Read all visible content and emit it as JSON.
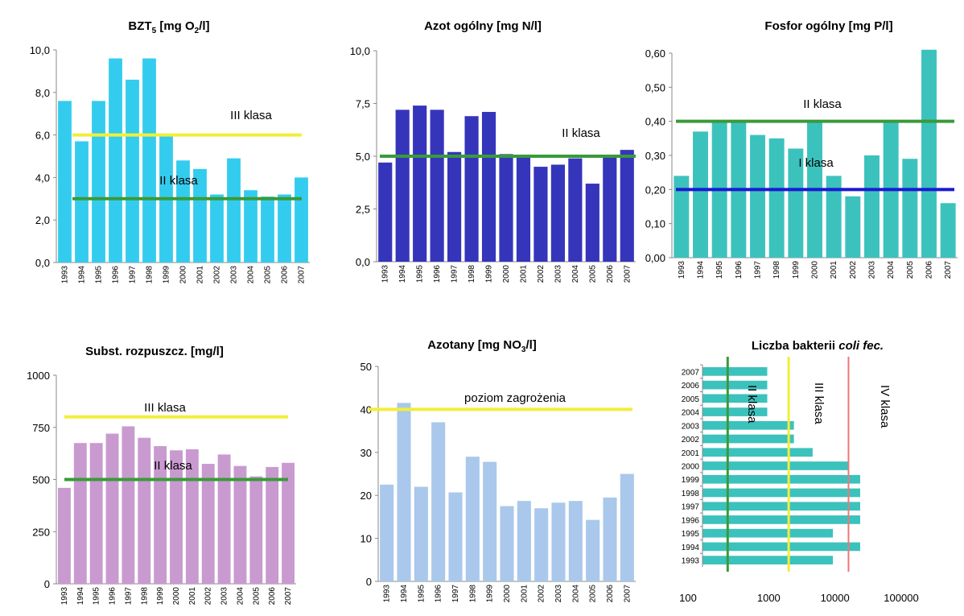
{
  "chart_data": [
    {
      "type": "bar",
      "title": "BZT",
      "title_sub": "5",
      "title_rest": " [mg O",
      "title_sub2": "2",
      "title_end": "/l]",
      "categories": [
        "1993",
        "1994",
        "1995",
        "1996",
        "1997",
        "1998",
        "1999",
        "2000",
        "2001",
        "2002",
        "2003",
        "2004",
        "2005",
        "2006",
        "2007"
      ],
      "values": [
        7.6,
        5.7,
        7.6,
        9.6,
        8.6,
        9.6,
        6.0,
        4.8,
        4.4,
        3.2,
        4.9,
        3.4,
        3.1,
        3.2,
        4.0
      ],
      "ylim": [
        0,
        10
      ],
      "yticks": [
        "0,0",
        "2,0",
        "4,0",
        "6,0",
        "8,0",
        "10,0"
      ],
      "ytick_values": [
        0,
        2,
        4,
        6,
        8,
        10
      ],
      "bar_color": "#33ccee",
      "reference_lines": [
        {
          "label": "III klasa",
          "value": 6.0,
          "color": "#f2ee3a"
        },
        {
          "label": "II klasa",
          "value": 3.0,
          "color": "#3a9a3a"
        }
      ]
    },
    {
      "type": "bar",
      "title": "Azot ogólny [mg N/l]",
      "categories": [
        "1993",
        "1994",
        "1995",
        "1996",
        "1997",
        "1998",
        "1999",
        "2000",
        "2001",
        "2002",
        "2003",
        "2004",
        "2005",
        "2006",
        "2007"
      ],
      "values": [
        4.7,
        7.2,
        7.4,
        7.2,
        5.2,
        6.9,
        7.1,
        5.1,
        5.0,
        4.5,
        4.6,
        4.9,
        3.7,
        5.0,
        5.3
      ],
      "ylim": [
        0,
        10
      ],
      "yticks": [
        "0,0",
        "2,5",
        "5,0",
        "7,5",
        "10,0"
      ],
      "ytick_values": [
        0,
        2.5,
        5,
        7.5,
        10
      ],
      "bar_color": "#3535bb",
      "reference_lines": [
        {
          "label": "II klasa",
          "value": 5.0,
          "color": "#3a9a3a"
        }
      ]
    },
    {
      "type": "bar",
      "title": "Fosfor ogólny [mg P/l]",
      "categories": [
        "1993",
        "1994",
        "1995",
        "1996",
        "1997",
        "1998",
        "1999",
        "2000",
        "2001",
        "2002",
        "2003",
        "2004",
        "2005",
        "2006",
        "2007"
      ],
      "values": [
        0.24,
        0.37,
        0.4,
        0.4,
        0.36,
        0.35,
        0.32,
        0.4,
        0.24,
        0.18,
        0.3,
        0.4,
        0.29,
        0.61,
        0.16
      ],
      "ylim": [
        0,
        0.6
      ],
      "yticks": [
        "0,00",
        "0,10",
        "0,20",
        "0,30",
        "0,40",
        "0,50",
        "0,60"
      ],
      "ytick_values": [
        0,
        0.1,
        0.2,
        0.3,
        0.4,
        0.5,
        0.6
      ],
      "bar_color": "#3cc2bd",
      "reference_lines": [
        {
          "label": "II klasa",
          "value": 0.4,
          "color": "#3a9a3a"
        },
        {
          "label": "I klasa",
          "value": 0.2,
          "color": "#1a1ad0"
        }
      ]
    },
    {
      "type": "bar",
      "title": "Subst. rozpuszcz. [mg/l]",
      "categories": [
        "1993",
        "1994",
        "1995",
        "1996",
        "1997",
        "1998",
        "1999",
        "2000",
        "2001",
        "2002",
        "2003",
        "2004",
        "2005",
        "2006",
        "2007"
      ],
      "values": [
        460,
        675,
        675,
        720,
        755,
        700,
        660,
        640,
        645,
        575,
        620,
        565,
        515,
        560,
        580
      ],
      "ylim": [
        0,
        1000
      ],
      "yticks": [
        "0",
        "250",
        "500",
        "750",
        "1000"
      ],
      "ytick_values": [
        0,
        250,
        500,
        750,
        1000
      ],
      "bar_color": "#c99ad0",
      "reference_lines": [
        {
          "label": "III klasa",
          "value": 800,
          "color": "#f2ee3a"
        },
        {
          "label": "II klasa",
          "value": 500,
          "color": "#3a9a3a"
        }
      ]
    },
    {
      "type": "bar",
      "title": "Azotany [mg NO",
      "title_sub": "3",
      "title_end": "/l]",
      "categories": [
        "1993",
        "1994",
        "1995",
        "1996",
        "1997",
        "1998",
        "1999",
        "2000",
        "2001",
        "2002",
        "2003",
        "2004",
        "2005",
        "2006",
        "2007"
      ],
      "values": [
        22.5,
        41.5,
        22,
        37,
        20.7,
        29,
        27.8,
        17.5,
        18.7,
        17,
        18.3,
        18.7,
        14.3,
        19.5,
        25
      ],
      "ylim": [
        0,
        50
      ],
      "yticks": [
        "0",
        "10",
        "20",
        "30",
        "40",
        "50"
      ],
      "ytick_values": [
        0,
        10,
        20,
        30,
        40,
        50
      ],
      "bar_color": "#a9c8ec",
      "reference_lines": [
        {
          "label": "poziom zagrożenia",
          "value": 40,
          "color": "#f2ee3a"
        }
      ]
    },
    {
      "type": "bar",
      "orientation": "horizontal",
      "title": "Liczba bakterii ",
      "title_italic": "coli fec.",
      "categories": [
        "2007",
        "2006",
        "2005",
        "2004",
        "2003",
        "2002",
        "2001",
        "2000",
        "1999",
        "1998",
        "1997",
        "1996",
        "1995",
        "1994",
        "1993"
      ],
      "values": [
        950,
        950,
        950,
        950,
        2400,
        2400,
        4600,
        16000,
        24000,
        24000,
        24000,
        24000,
        9300,
        24000,
        9300
      ],
      "xscale": "log",
      "xlim": [
        100,
        100000
      ],
      "xticks": [
        "100",
        "1000",
        "10000",
        "100000"
      ],
      "xtick_values": [
        100,
        1000,
        10000,
        100000
      ],
      "bar_color": "#3cc2bd",
      "reference_lines": [
        {
          "label": "II klasa",
          "value": 240,
          "color": "#3a9a3a"
        },
        {
          "label": "III klasa",
          "value": 2000,
          "color": "#f2ee3a"
        },
        {
          "label": "IV klasa",
          "value": 16000,
          "color": "#ee7777"
        }
      ]
    }
  ]
}
